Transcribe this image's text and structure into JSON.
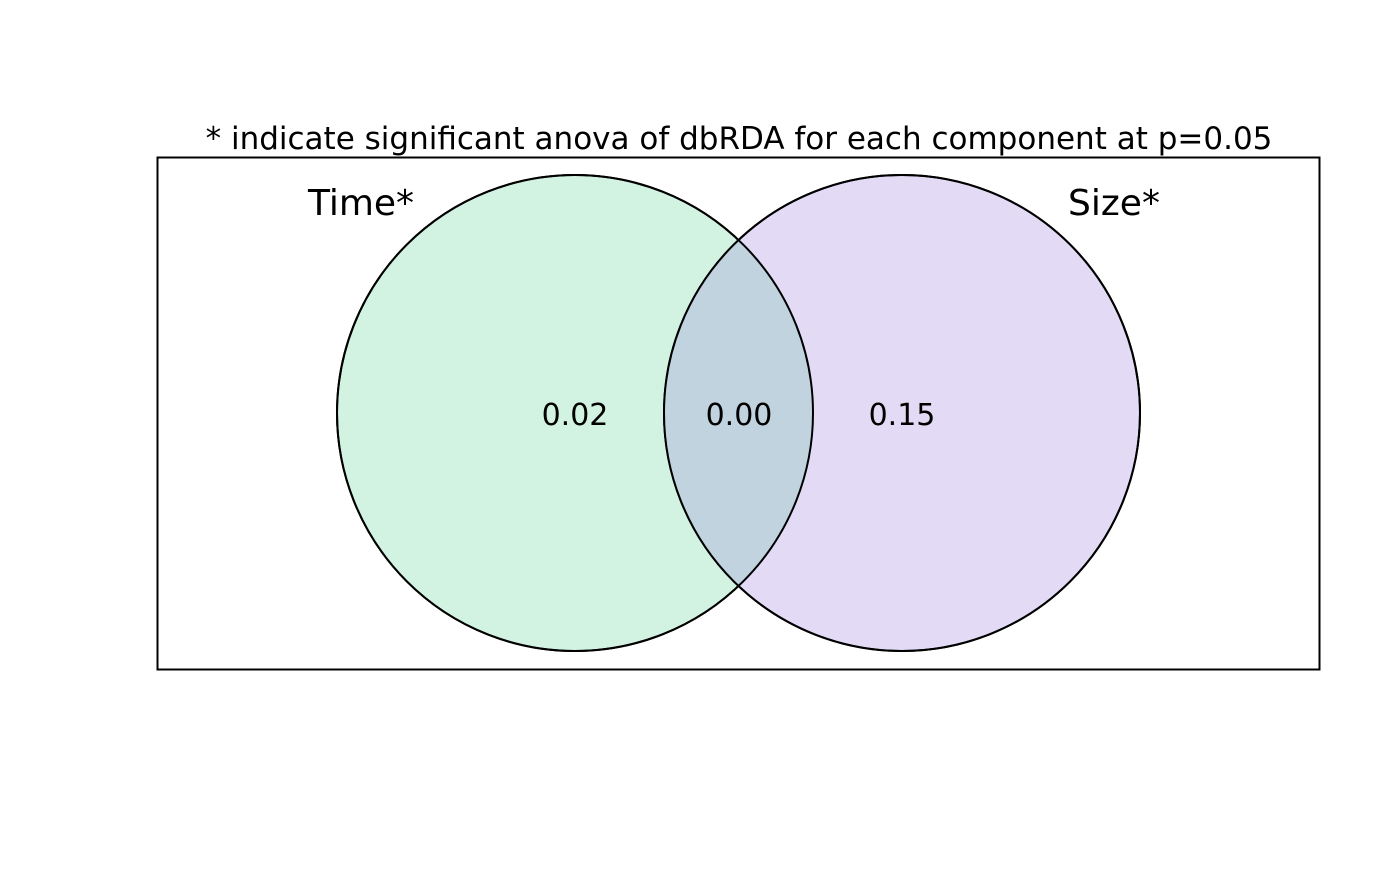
{
  "title": "* indicate significant anova of dbRDA for each component at p=0.05",
  "sets": [
    {
      "label": "Time*",
      "fill": "#d2f2e2"
    },
    {
      "label": "Size*",
      "fill": "#e3dbf5"
    }
  ],
  "regions": {
    "time_only": "0.02",
    "overlap": "0.00",
    "size_only": "0.15"
  },
  "colors": {
    "overlap_fill": "#c0d3df",
    "stroke": "#000000",
    "background": "#ffffff"
  }
}
